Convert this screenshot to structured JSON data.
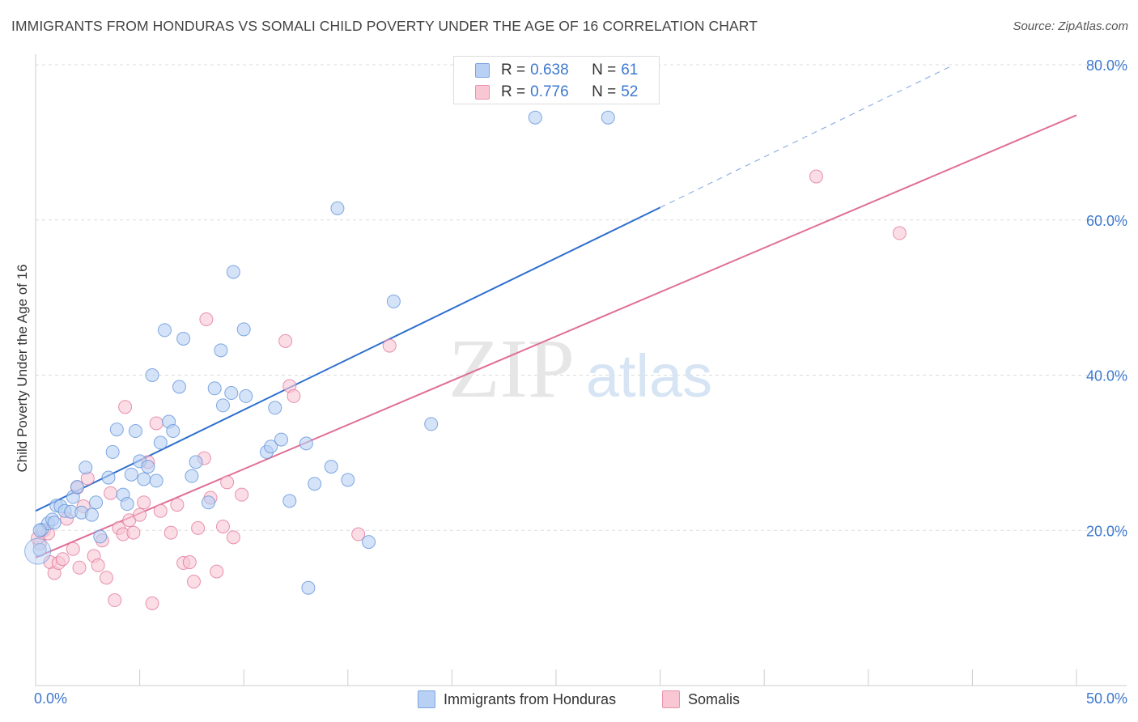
{
  "title": "IMMIGRANTS FROM HONDURAS VS SOMALI CHILD POVERTY UNDER THE AGE OF 16 CORRELATION CHART",
  "source": "Source: ZipAtlas.com",
  "watermark": {
    "zip": "ZIP",
    "atlas": "atlas"
  },
  "legend": [
    {
      "r_label": "R =",
      "r_value": "0.638",
      "n_label": "N =",
      "n_value": "61",
      "color": "#5b8ed8"
    },
    {
      "r_label": "R =",
      "r_value": "0.776",
      "n_label": "N =",
      "n_value": "52",
      "color": "#e07098"
    }
  ],
  "bottom_legend": [
    "Immigrants from Honduras",
    "Somalis"
  ],
  "chart_data": {
    "type": "scatter",
    "title": "IMMIGRANTS FROM HONDURAS VS SOMALI CHILD POVERTY UNDER THE AGE OF 16 CORRELATION CHART",
    "xlabel": "",
    "ylabel": "Child Poverty Under the Age of 16",
    "xlim": [
      0,
      50
    ],
    "ylim": [
      0,
      80
    ],
    "x_tick_labels": [
      "0.0%",
      "50.0%"
    ],
    "y_ticks": [
      20,
      40,
      60,
      80
    ],
    "y_tick_labels": [
      "20.0%",
      "40.0%",
      "60.0%",
      "80.0%"
    ],
    "grid": "horizontal dashed",
    "legend_position": "top-center",
    "colors": {
      "series1": "#5b8ed8",
      "series1_fill": "#b8d0f4",
      "series2": "#e07098",
      "series2_fill": "#f9c6d4"
    },
    "series": [
      {
        "name": "Immigrants from Honduras",
        "trend": {
          "x0": 0,
          "y0": 22.5,
          "x1": 30,
          "y1": 61.6,
          "dash_to_x": 44
        },
        "points": [
          [
            0.2,
            17.5
          ],
          [
            0.3,
            20.1
          ],
          [
            0.6,
            20.9
          ],
          [
            0.8,
            21.4
          ],
          [
            1.0,
            23.2
          ],
          [
            1.2,
            23.1
          ],
          [
            1.4,
            22.5
          ],
          [
            1.7,
            22.4
          ],
          [
            1.8,
            24.3
          ],
          [
            2.0,
            25.6
          ],
          [
            2.2,
            22.3
          ],
          [
            2.4,
            28.1
          ],
          [
            2.7,
            22.0
          ],
          [
            2.9,
            23.6
          ],
          [
            3.1,
            19.2
          ],
          [
            3.5,
            26.8
          ],
          [
            3.7,
            30.1
          ],
          [
            3.9,
            33.0
          ],
          [
            4.2,
            24.6
          ],
          [
            4.4,
            23.4
          ],
          [
            4.6,
            27.2
          ],
          [
            4.8,
            32.8
          ],
          [
            5.0,
            28.9
          ],
          [
            5.2,
            26.6
          ],
          [
            5.4,
            28.2
          ],
          [
            5.6,
            40.0
          ],
          [
            5.8,
            26.4
          ],
          [
            6.0,
            31.3
          ],
          [
            6.2,
            45.8
          ],
          [
            6.4,
            34.0
          ],
          [
            6.6,
            32.8
          ],
          [
            6.9,
            38.5
          ],
          [
            7.1,
            44.7
          ],
          [
            7.5,
            27.0
          ],
          [
            7.7,
            28.8
          ],
          [
            8.3,
            23.6
          ],
          [
            8.6,
            38.3
          ],
          [
            8.9,
            43.2
          ],
          [
            9.0,
            36.1
          ],
          [
            9.4,
            37.7
          ],
          [
            9.5,
            53.3
          ],
          [
            10.0,
            45.9
          ],
          [
            10.1,
            37.3
          ],
          [
            11.1,
            30.1
          ],
          [
            11.3,
            30.8
          ],
          [
            11.5,
            35.8
          ],
          [
            11.8,
            31.7
          ],
          [
            12.2,
            23.8
          ],
          [
            13.0,
            31.2
          ],
          [
            13.1,
            12.6
          ],
          [
            13.4,
            26.0
          ],
          [
            14.2,
            28.2
          ],
          [
            14.5,
            61.5
          ],
          [
            15.0,
            26.5
          ],
          [
            16.0,
            18.5
          ],
          [
            17.2,
            49.5
          ],
          [
            19.0,
            33.7
          ],
          [
            24.0,
            73.2
          ],
          [
            27.5,
            73.2
          ],
          [
            0.2,
            20.0
          ],
          [
            0.9,
            21.0
          ]
        ]
      },
      {
        "name": "Somalis",
        "trend": {
          "x0": 0,
          "y0": 16.5,
          "x1": 50,
          "y1": 73.5
        },
        "points": [
          [
            0.2,
            18.3
          ],
          [
            0.4,
            20.0
          ],
          [
            0.6,
            19.6
          ],
          [
            0.7,
            15.9
          ],
          [
            0.9,
            14.5
          ],
          [
            1.1,
            15.8
          ],
          [
            1.3,
            16.3
          ],
          [
            1.5,
            21.5
          ],
          [
            1.8,
            17.6
          ],
          [
            2.0,
            25.5
          ],
          [
            2.1,
            15.2
          ],
          [
            2.3,
            23.1
          ],
          [
            2.5,
            26.7
          ],
          [
            2.8,
            16.7
          ],
          [
            3.0,
            15.5
          ],
          [
            3.2,
            18.7
          ],
          [
            3.4,
            13.9
          ],
          [
            3.6,
            24.8
          ],
          [
            3.8,
            11.0
          ],
          [
            4.0,
            20.3
          ],
          [
            4.2,
            19.5
          ],
          [
            4.3,
            35.9
          ],
          [
            4.5,
            21.3
          ],
          [
            4.7,
            19.7
          ],
          [
            5.0,
            22.0
          ],
          [
            5.2,
            23.6
          ],
          [
            5.4,
            28.8
          ],
          [
            5.6,
            10.6
          ],
          [
            5.8,
            33.8
          ],
          [
            6.0,
            22.5
          ],
          [
            6.5,
            19.7
          ],
          [
            6.8,
            23.3
          ],
          [
            7.1,
            15.8
          ],
          [
            7.4,
            15.9
          ],
          [
            7.6,
            13.4
          ],
          [
            7.8,
            20.3
          ],
          [
            8.1,
            29.3
          ],
          [
            8.2,
            47.2
          ],
          [
            8.4,
            24.2
          ],
          [
            8.7,
            14.7
          ],
          [
            9.0,
            20.5
          ],
          [
            9.2,
            26.2
          ],
          [
            9.5,
            19.1
          ],
          [
            9.9,
            24.6
          ],
          [
            12.0,
            44.4
          ],
          [
            12.2,
            38.6
          ],
          [
            12.4,
            37.3
          ],
          [
            15.5,
            19.5
          ],
          [
            17.0,
            43.8
          ],
          [
            37.5,
            65.6
          ],
          [
            41.5,
            58.3
          ],
          [
            0.1,
            19.0
          ]
        ]
      }
    ]
  }
}
